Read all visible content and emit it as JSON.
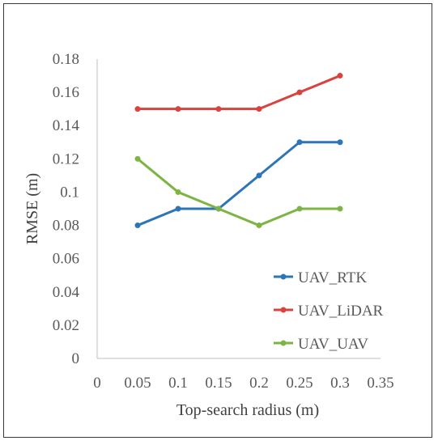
{
  "chart_data": {
    "type": "line",
    "xlabel": "Top-search radius (m)",
    "ylabel": "RMSE (m)",
    "xlim": [
      0,
      0.35
    ],
    "ylim": [
      0,
      0.18
    ],
    "x_ticks": [
      "0",
      "0.05",
      "0.1",
      "0.15",
      "0.2",
      "0.25",
      "0.3",
      "0.35"
    ],
    "y_ticks": [
      "0",
      "0.02",
      "0.04",
      "0.06",
      "0.08",
      "0.1",
      "0.12",
      "0.14",
      "0.16",
      "0.18"
    ],
    "x": [
      0.05,
      0.1,
      0.15,
      0.2,
      0.25,
      0.3
    ],
    "series": [
      {
        "name": "UAV_RTK",
        "color": "#2e75b6",
        "values": [
          0.08,
          0.09,
          0.09,
          0.11,
          0.13,
          0.13
        ]
      },
      {
        "name": "UAV_LiDAR",
        "color": "#d9423f",
        "values": [
          0.15,
          0.15,
          0.15,
          0.15,
          0.16,
          0.17
        ]
      },
      {
        "name": "UAV_UAV",
        "color": "#7db544",
        "values": [
          0.12,
          0.1,
          0.09,
          0.08,
          0.09,
          0.09
        ]
      }
    ],
    "grid": false,
    "legend_position": "bottom-right"
  }
}
